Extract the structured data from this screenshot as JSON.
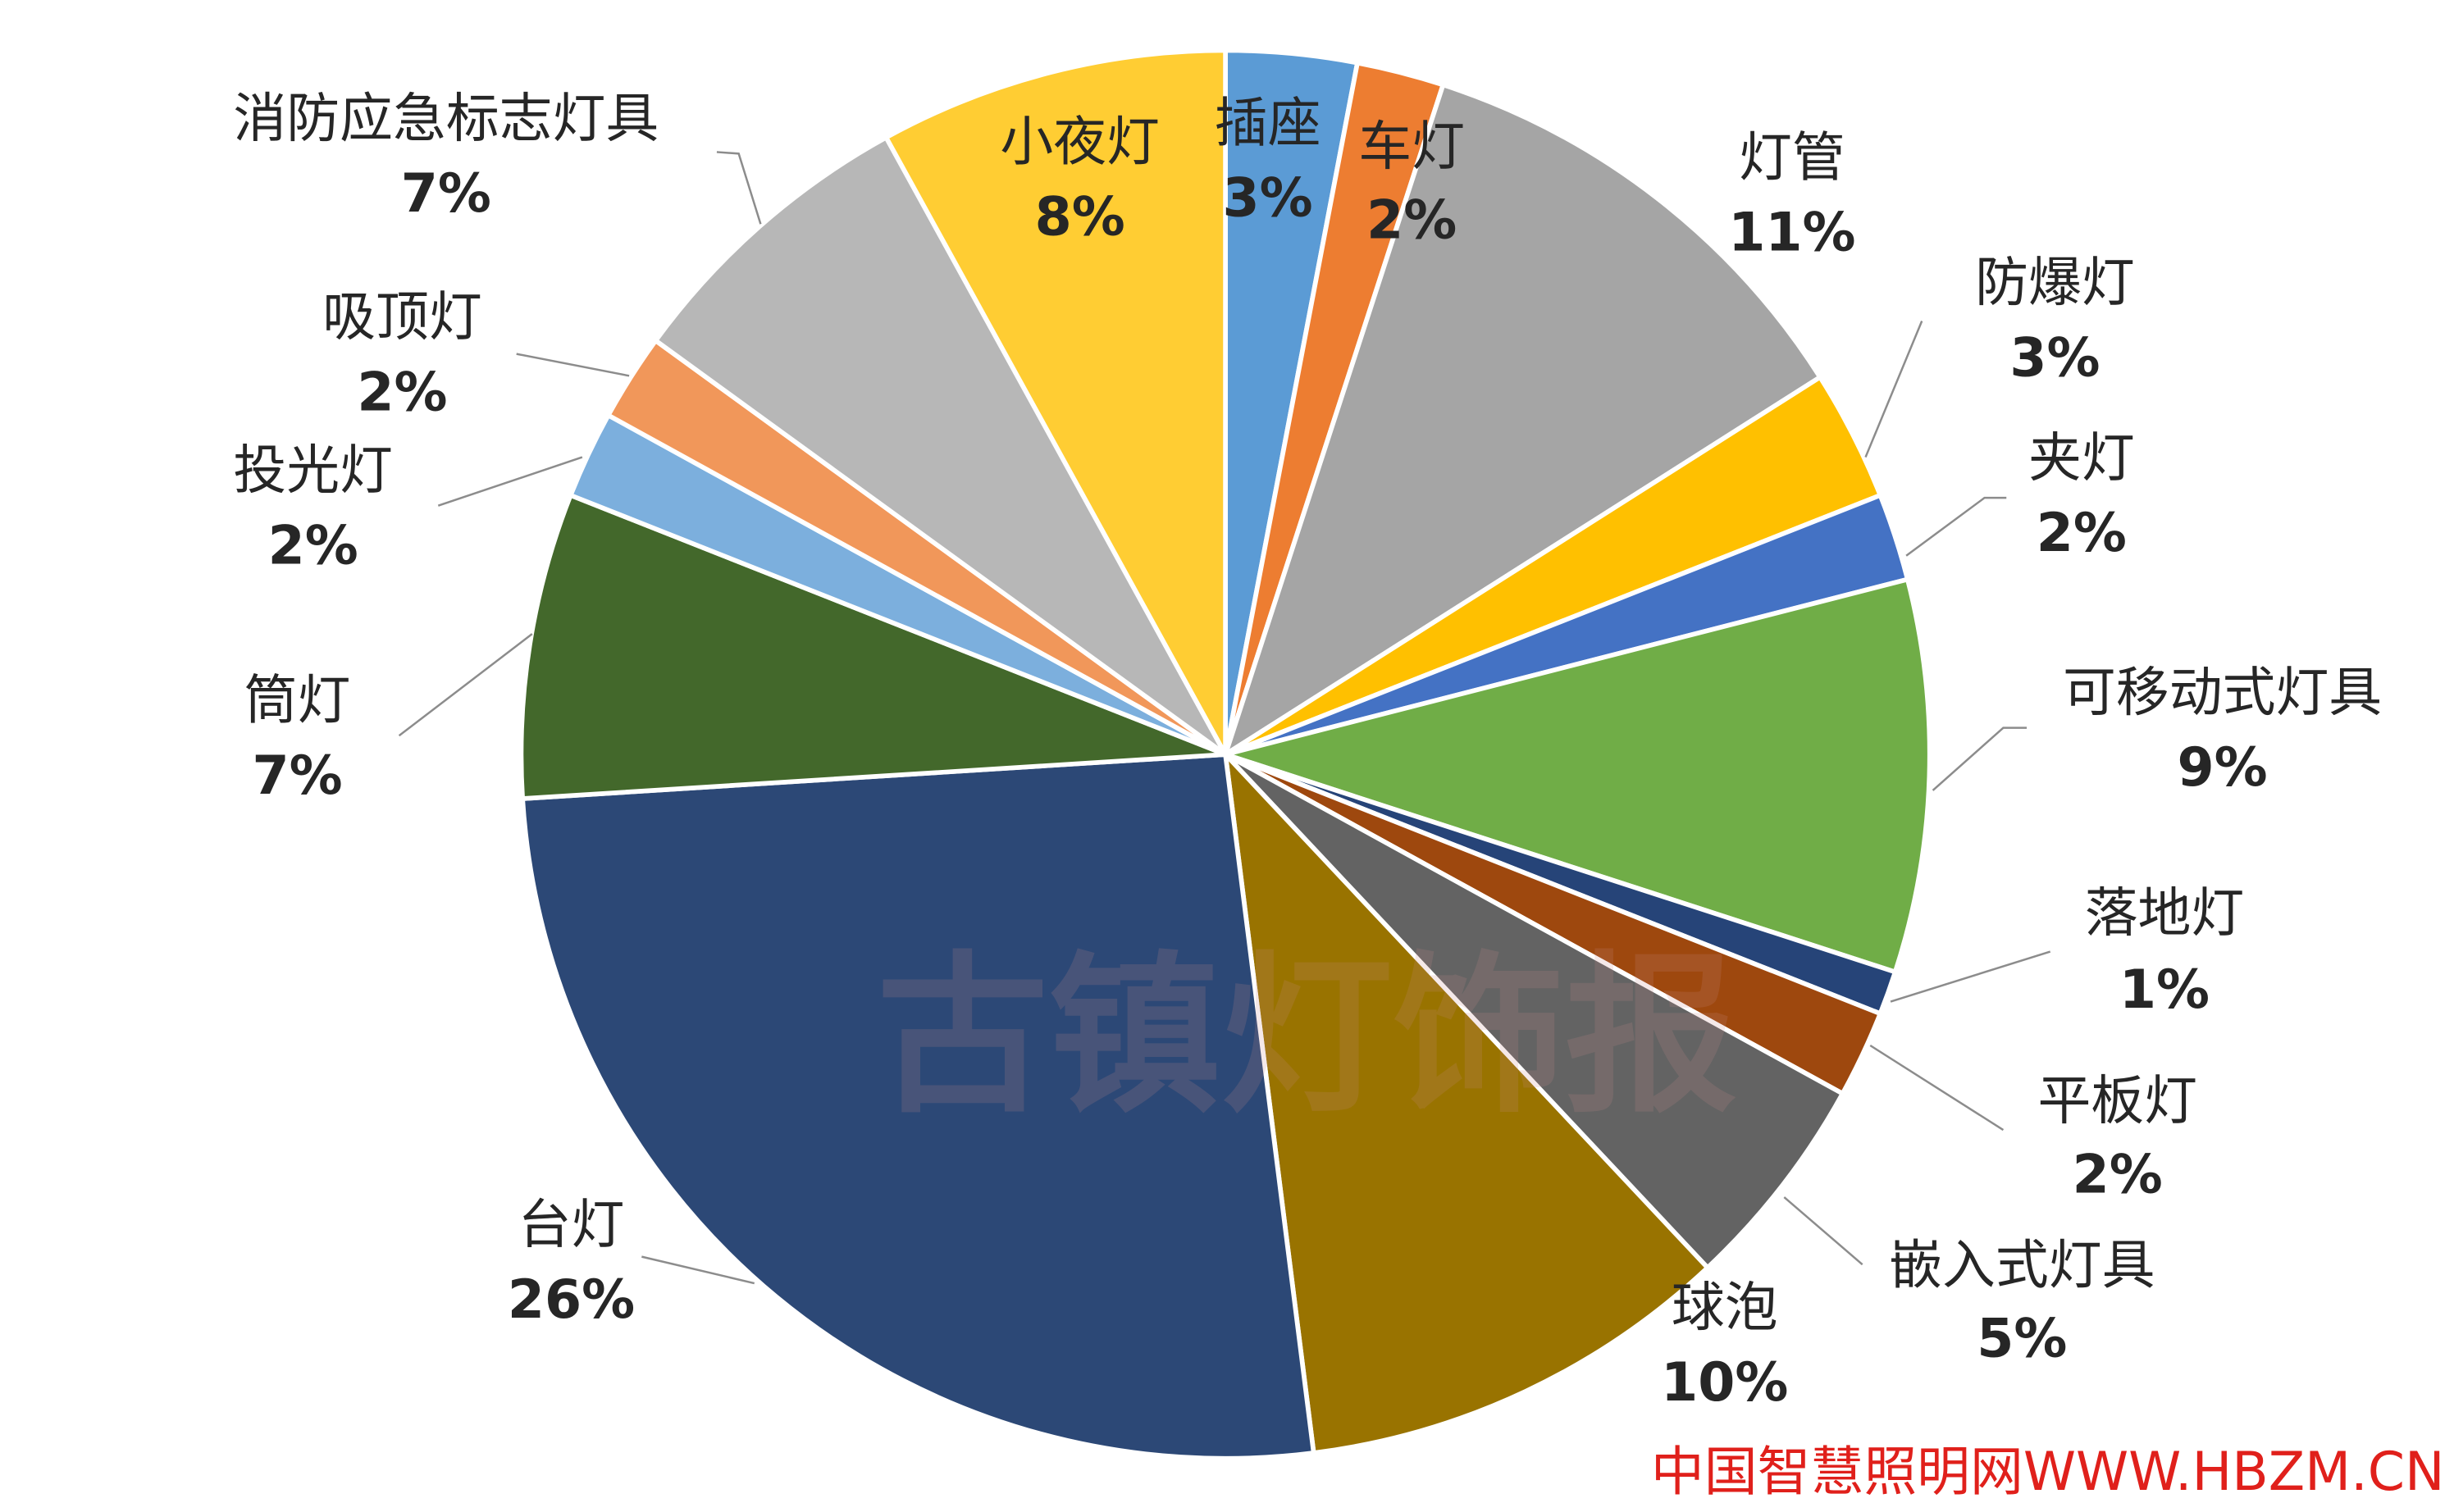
{
  "chart_data": {
    "type": "pie",
    "title": "",
    "start": "12 o'clock",
    "direction": "clockwise",
    "slices": [
      {
        "label": "插座",
        "value": 3,
        "pct": "3%",
        "color": "#5b9bd5"
      },
      {
        "label": "车灯",
        "value": 2,
        "pct": "2%",
        "color": "#ed7d31"
      },
      {
        "label": "灯管",
        "value": 11,
        "pct": "11%",
        "color": "#a5a5a5"
      },
      {
        "label": "防爆灯",
        "value": 3,
        "pct": "3%",
        "color": "#ffc000"
      },
      {
        "label": "夹灯",
        "value": 2,
        "pct": "2%",
        "color": "#4472c4"
      },
      {
        "label": "可移动式灯具",
        "value": 9,
        "pct": "9%",
        "color": "#70ad47"
      },
      {
        "label": "落地灯",
        "value": 1,
        "pct": "1%",
        "color": "#264478"
      },
      {
        "label": "平板灯",
        "value": 2,
        "pct": "2%",
        "color": "#9e480e"
      },
      {
        "label": "嵌入式灯具",
        "value": 5,
        "pct": "5%",
        "color": "#636363"
      },
      {
        "label": "球泡",
        "value": 10,
        "pct": "10%",
        "color": "#997300"
      },
      {
        "label": "台灯",
        "value": 26,
        "pct": "26%",
        "color": "#2c4876"
      },
      {
        "label": "筒灯",
        "value": 7,
        "pct": "7%",
        "color": "#43682b"
      },
      {
        "label": "投光灯",
        "value": 2,
        "pct": "2%",
        "color": "#7cafdd"
      },
      {
        "label": "吸顶灯",
        "value": 2,
        "pct": "2%",
        "color": "#f1975a"
      },
      {
        "label": "消防应急标志灯具",
        "value": 7,
        "pct": "7%",
        "color": "#b7b7b7"
      },
      {
        "label": "小夜灯",
        "value": 8,
        "pct": "8%",
        "color": "#ffcd33"
      }
    ]
  },
  "watermark": {
    "site": "中国智慧照明网WWW.HBZM.CN",
    "stamp": "古镇灯饰报"
  }
}
